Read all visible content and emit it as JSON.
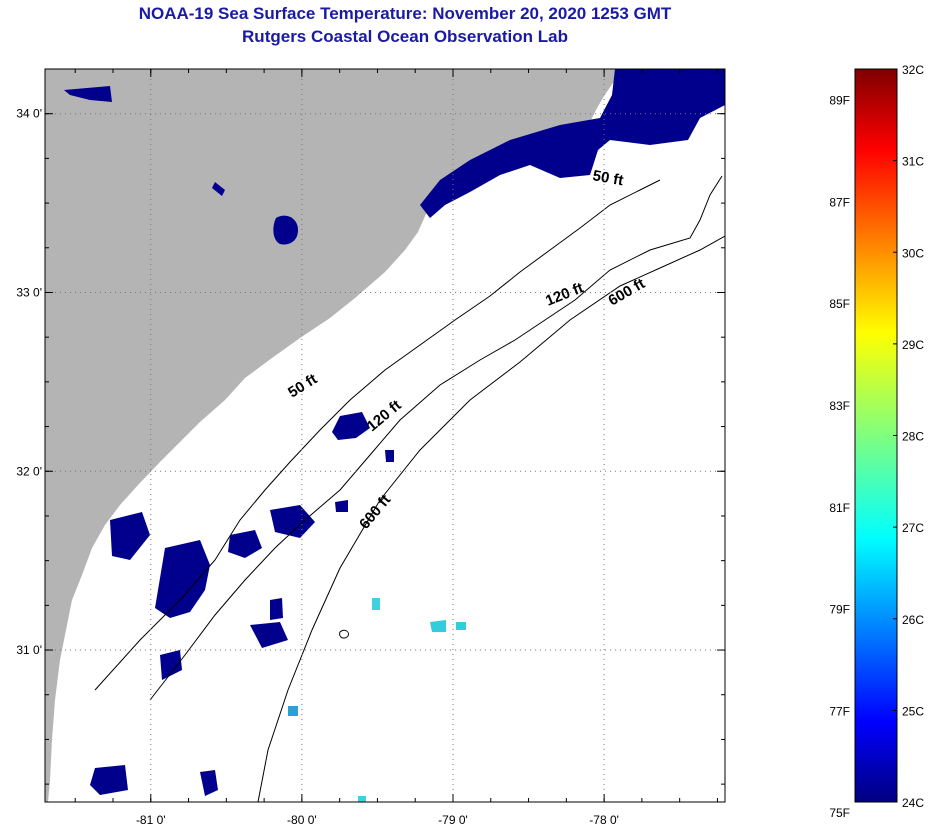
{
  "header": {
    "title": "NOAA-19 Sea Surface Temperature:  November 20, 2020 1253 GMT",
    "subtitle": "Rutgers Coastal Ocean Observation Lab"
  },
  "map": {
    "lon_range": [
      -81.7,
      -77.2
    ],
    "lat_range": [
      30.15,
      34.25
    ],
    "lon_ticks": [
      {
        "value": -81,
        "label": "-81 0'"
      },
      {
        "value": -80,
        "label": "-80 0'"
      },
      {
        "value": -79,
        "label": "-79 0'"
      },
      {
        "value": -78,
        "label": "-78 0'"
      }
    ],
    "lat_ticks": [
      {
        "value": 34,
        "label": "34 0'"
      },
      {
        "value": 33,
        "label": "33 0'"
      },
      {
        "value": 32,
        "label": "32 0'"
      },
      {
        "value": 31,
        "label": "31 0'"
      }
    ],
    "contour_labels": [
      "50 ft",
      "120 ft",
      "600 ft",
      "120 ft",
      "600 ft",
      "50 ft"
    ],
    "land_color": "#b4b4b4",
    "ocean_color": "#ffffff",
    "cold_color": "#00008c"
  },
  "colorbar": {
    "fahrenheit": [
      "89F",
      "87F",
      "85F",
      "83F",
      "81F",
      "79F",
      "77F",
      "75F"
    ],
    "celsius": [
      "32C",
      "31C",
      "30C",
      "29C",
      "28C",
      "27C",
      "26C",
      "25C",
      "24C"
    ],
    "f_values": [
      89,
      87,
      85,
      83,
      81,
      79,
      77,
      75
    ],
    "c_values": [
      32,
      31,
      30,
      29,
      28,
      27,
      26,
      25,
      24
    ],
    "range_c": [
      24,
      32
    ]
  }
}
